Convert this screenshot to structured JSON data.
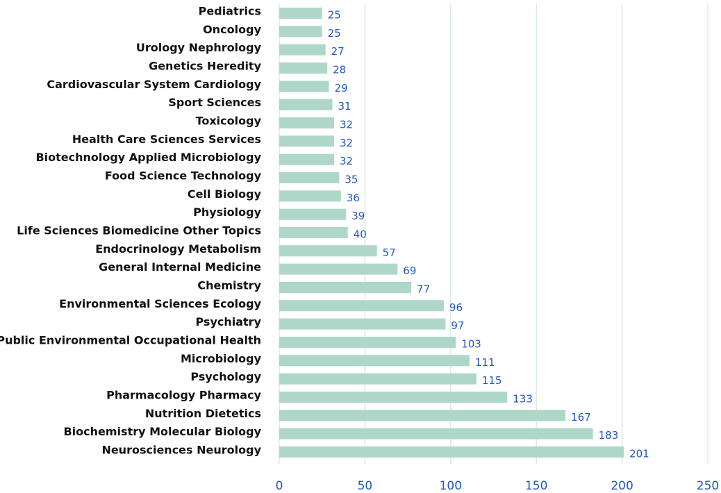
{
  "chart_data": {
    "type": "bar",
    "orientation": "horizontal",
    "categories": [
      "Pediatrics",
      "Oncology",
      "Urology Nephrology",
      "Genetics Heredity",
      "Cardiovascular System Cardiology",
      "Sport Sciences",
      "Toxicology",
      "Health Care Sciences Services",
      "Biotechnology Applied Microbiology",
      "Food Science Technology",
      "Cell Biology",
      "Physiology",
      "Life Sciences Biomedicine Other Topics",
      "Endocrinology Metabolism",
      "General Internal Medicine",
      "Chemistry",
      "Environmental Sciences Ecology",
      "Psychiatry",
      "Public Environmental Occupational Health",
      "Microbiology",
      "Psychology",
      "Pharmacology Pharmacy",
      "Nutrition Dietetics",
      "Biochemistry Molecular Biology",
      "Neurosciences Neurology"
    ],
    "values": [
      25,
      25,
      27,
      28,
      29,
      31,
      32,
      32,
      32,
      35,
      36,
      39,
      40,
      57,
      69,
      77,
      96,
      97,
      103,
      111,
      115,
      133,
      167,
      183,
      201
    ],
    "color": "#afd7c8",
    "label_color": "#2257c4",
    "xlim": [
      0,
      250
    ],
    "xticks": [
      0,
      50,
      100,
      150,
      200,
      250
    ],
    "grid": true
  }
}
